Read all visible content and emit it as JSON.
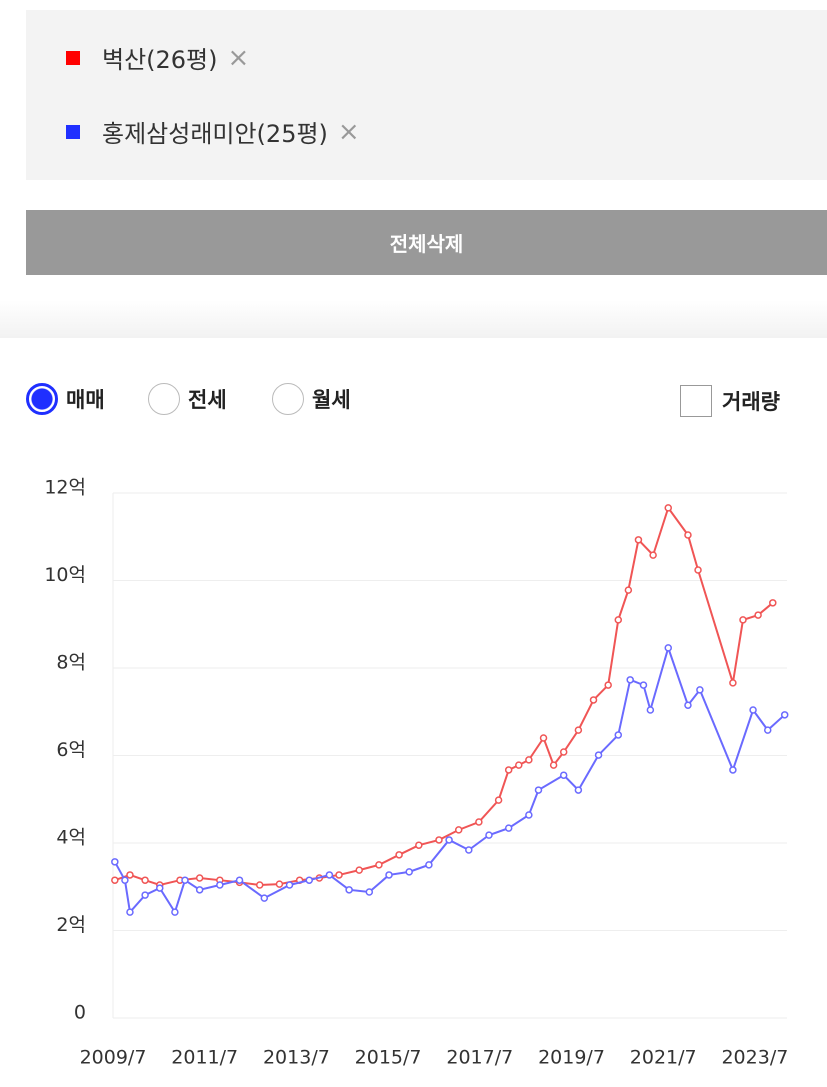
{
  "legend_panel": {
    "items": [
      {
        "label": "벽산(26평)",
        "color": "#ff0000"
      },
      {
        "label": "홍제삼성래미안(25평)",
        "color": "#1f2fff"
      }
    ]
  },
  "delete_all_button": "전체삭제",
  "tabs": {
    "options": [
      "매매",
      "전세",
      "월세"
    ],
    "selected": 0
  },
  "checkbox": "거래량",
  "chart_data": {
    "type": "line",
    "xlim": [
      2009.5,
      2024.2
    ],
    "xticks": [
      {
        "value": 2009.5,
        "label": "2009/7"
      },
      {
        "value": 2011.5,
        "label": "2011/7"
      },
      {
        "value": 2013.5,
        "label": "2013/7"
      },
      {
        "value": 2015.5,
        "label": "2015/7"
      },
      {
        "value": 2017.5,
        "label": "2017/7"
      },
      {
        "value": 2019.5,
        "label": "2019/7"
      },
      {
        "value": 2021.5,
        "label": "2021/7"
      },
      {
        "value": 2023.5,
        "label": "2023/7"
      }
    ],
    "ylim": [
      0,
      12
    ],
    "yticks": [
      0,
      {
        "value": 2,
        "label": "2억"
      },
      {
        "value": 4,
        "label": "4억"
      },
      {
        "value": 6,
        "label": "6억"
      },
      {
        "value": 8,
        "label": "8억"
      },
      {
        "value": 10,
        "label": "10억"
      },
      {
        "value": 12,
        "label": "12억"
      }
    ],
    "grid": true,
    "series": [
      {
        "name": "벽산(26평)",
        "color": "#f05555",
        "x": [
          2009.54,
          2009.87,
          2010.2,
          2010.52,
          2010.96,
          2011.39,
          2011.83,
          2012.26,
          2012.7,
          2013.13,
          2013.57,
          2014.0,
          2014.43,
          2014.87,
          2015.3,
          2015.74,
          2016.17,
          2016.61,
          2017.04,
          2017.48,
          2017.91,
          2018.13,
          2018.35,
          2018.57,
          2018.89,
          2019.11,
          2019.33,
          2019.65,
          2019.98,
          2020.3,
          2020.52,
          2020.74,
          2020.96,
          2021.28,
          2021.61,
          2022.04,
          2022.26,
          2023.02,
          2023.24,
          2023.57,
          2023.89
        ],
        "values": [
          3.15,
          3.27,
          3.15,
          3.04,
          3.15,
          3.2,
          3.15,
          3.1,
          3.04,
          3.06,
          3.15,
          3.2,
          3.27,
          3.38,
          3.5,
          3.73,
          3.95,
          4.07,
          4.3,
          4.48,
          4.98,
          5.67,
          5.78,
          5.9,
          6.4,
          5.78,
          6.08,
          6.58,
          7.27,
          7.61,
          9.1,
          9.78,
          10.93,
          10.58,
          11.66,
          11.04,
          10.24,
          7.66,
          9.1,
          9.21,
          9.49
        ]
      },
      {
        "name": "홍제삼성래미안(25평)",
        "color": "#6a6aff",
        "x": [
          2009.54,
          2009.76,
          2009.87,
          2010.2,
          2010.52,
          2010.85,
          2011.07,
          2011.39,
          2011.83,
          2012.26,
          2012.8,
          2013.35,
          2013.78,
          2014.22,
          2014.65,
          2015.09,
          2015.52,
          2015.96,
          2016.39,
          2016.83,
          2017.26,
          2017.7,
          2018.13,
          2018.57,
          2018.78,
          2019.33,
          2019.65,
          2020.09,
          2020.52,
          2020.78,
          2021.07,
          2021.22,
          2021.61,
          2022.04,
          2022.3,
          2023.02,
          2023.46,
          2023.78,
          2024.15
        ],
        "values": [
          3.57,
          3.15,
          2.42,
          2.81,
          2.97,
          2.42,
          3.15,
          2.93,
          3.04,
          3.15,
          2.74,
          3.04,
          3.15,
          3.27,
          2.93,
          2.88,
          3.27,
          3.34,
          3.5,
          4.07,
          3.84,
          4.18,
          4.34,
          4.64,
          5.21,
          5.55,
          5.21,
          6.01,
          6.47,
          7.73,
          7.61,
          7.04,
          8.46,
          7.15,
          7.5,
          5.67,
          7.04,
          6.58,
          6.93
        ]
      }
    ]
  }
}
